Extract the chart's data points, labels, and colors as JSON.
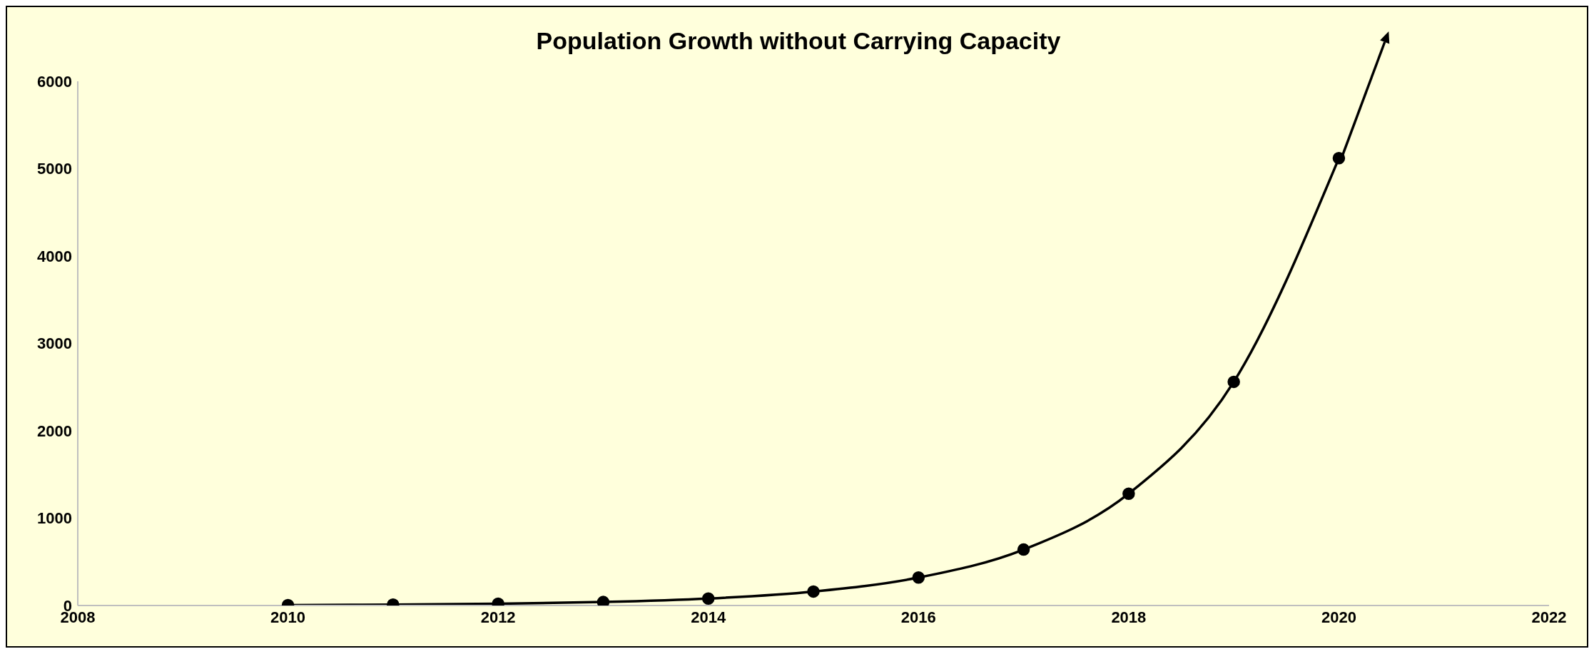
{
  "chart_data": {
    "type": "line",
    "title": "Population Growth without Carrying Capacity",
    "x": [
      2010,
      2011,
      2012,
      2013,
      2014,
      2015,
      2016,
      2017,
      2018,
      2019,
      2020
    ],
    "series": [
      {
        "color": "#000000",
        "values": [
          5,
          10,
          20,
          40,
          80,
          160,
          320,
          640,
          1280,
          2560,
          5120
        ]
      }
    ],
    "xlim": [
      2008,
      2022
    ],
    "xticks": [
      2008,
      2010,
      2012,
      2014,
      2016,
      2018,
      2020,
      2022
    ],
    "ylim": [
      0,
      6000
    ],
    "yticks": [
      0,
      1000,
      2000,
      3000,
      4000,
      5000,
      6000
    ],
    "grid": false,
    "legend": false,
    "marker": "circle",
    "line_style": "solid"
  }
}
